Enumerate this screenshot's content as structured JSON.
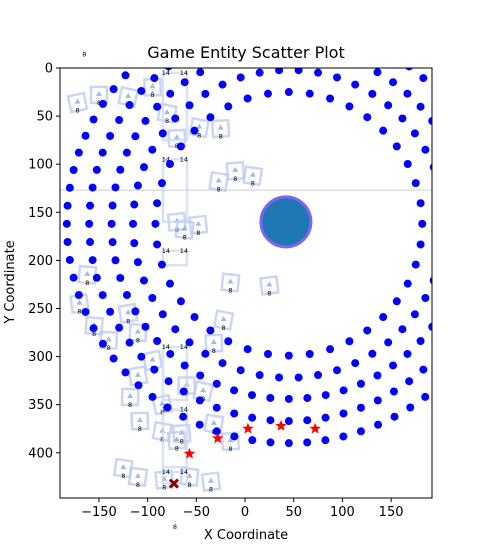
{
  "chart_data": {
    "type": "scatter",
    "title": "Game Entity Scatter Plot",
    "xlabel": "X Coordinate",
    "ylabel": "Y Coordinate",
    "xlim": [
      -190,
      192
    ],
    "ylim": [
      447,
      0
    ],
    "y_inverted": true,
    "grid": false,
    "x_ticks": [
      -150,
      -100,
      -50,
      0,
      50,
      100,
      150
    ],
    "y_ticks": [
      0,
      50,
      100,
      150,
      200,
      250,
      300,
      350,
      400
    ],
    "blue_point_color": "#0000ff",
    "star_color": "#ff0000",
    "hero_color": "#1f77b4",
    "hero_ring_color": "#7b68ee",
    "ring_center": [
      45,
      162
    ],
    "rings": [
      {
        "radius": 137,
        "points": 40
      },
      {
        "radius": 160,
        "points": 50
      },
      {
        "radius": 182,
        "points": 60
      },
      {
        "radius": 205,
        "points": 68
      },
      {
        "radius": 228,
        "points": 76
      }
    ],
    "hero": {
      "x": 42,
      "y": 160
    },
    "stars": [
      {
        "x": -57,
        "y": 401
      },
      {
        "x": -28,
        "y": 385
      },
      {
        "x": 3,
        "y": 375
      },
      {
        "x": 37,
        "y": 372
      },
      {
        "x": 72,
        "y": 375
      }
    ],
    "cross": {
      "x": -73,
      "y": 432
    },
    "horizontal_line_y": 127,
    "square_markers": [
      {
        "x": -172,
        "y": 36,
        "label": "8"
      },
      {
        "x": -150,
        "y": 28,
        "label": "8"
      },
      {
        "x": -120,
        "y": 30,
        "label": "8"
      },
      {
        "x": -95,
        "y": 20,
        "label": "8"
      },
      {
        "x": -80,
        "y": 47,
        "label": "8"
      },
      {
        "x": -70,
        "y": 73,
        "label": "8"
      },
      {
        "x": -47,
        "y": 62,
        "label": "8"
      },
      {
        "x": -25,
        "y": 63,
        "label": "8"
      },
      {
        "x": -27,
        "y": 118,
        "label": "8"
      },
      {
        "x": -10,
        "y": 107,
        "label": "8"
      },
      {
        "x": 8,
        "y": 112,
        "label": "8"
      },
      {
        "x": -70,
        "y": 160,
        "label": "8"
      },
      {
        "x": -62,
        "y": 168,
        "label": "8"
      },
      {
        "x": -48,
        "y": 163,
        "label": "8"
      },
      {
        "x": -15,
        "y": 223,
        "label": "8"
      },
      {
        "x": 25,
        "y": 226,
        "label": "8"
      },
      {
        "x": -162,
        "y": 215,
        "label": "8"
      },
      {
        "x": -170,
        "y": 245,
        "label": "8"
      },
      {
        "x": -155,
        "y": 268,
        "label": "8"
      },
      {
        "x": -120,
        "y": 255,
        "label": "8"
      },
      {
        "x": -110,
        "y": 275,
        "label": "8"
      },
      {
        "x": -110,
        "y": 320,
        "label": "8"
      },
      {
        "x": -140,
        "y": 283,
        "label": "8"
      },
      {
        "x": -95,
        "y": 304,
        "label": "8"
      },
      {
        "x": -118,
        "y": 342,
        "label": "8"
      },
      {
        "x": -85,
        "y": 350,
        "label": "8"
      },
      {
        "x": -60,
        "y": 330,
        "label": "8"
      },
      {
        "x": -43,
        "y": 336,
        "label": "8"
      },
      {
        "x": -32,
        "y": 286,
        "label": "8"
      },
      {
        "x": -22,
        "y": 262,
        "label": "8"
      },
      {
        "x": -108,
        "y": 367,
        "label": "8"
      },
      {
        "x": -85,
        "y": 378,
        "label": "8"
      },
      {
        "x": -65,
        "y": 380,
        "label": "8"
      },
      {
        "x": -32,
        "y": 370,
        "label": "8"
      },
      {
        "x": -15,
        "y": 388,
        "label": "8"
      },
      {
        "x": -125,
        "y": 416,
        "label": "8"
      },
      {
        "x": -70,
        "y": 387,
        "label": "8"
      },
      {
        "x": -110,
        "y": 425,
        "label": "8"
      },
      {
        "x": -83,
        "y": 428,
        "label": "8"
      },
      {
        "x": -57,
        "y": 425,
        "label": "8"
      },
      {
        "x": -35,
        "y": 430,
        "label": "8"
      }
    ],
    "tall_boxes": [
      {
        "x": -72,
        "y_top": 5,
        "y_bottom": 75,
        "label": "14"
      },
      {
        "x": -72,
        "y_top": 95,
        "y_bottom": 160,
        "label": "14"
      },
      {
        "x": -72,
        "y_top": 190,
        "y_bottom": 205,
        "label": "14"
      },
      {
        "x": -72,
        "y_top": 290,
        "y_bottom": 345,
        "label": "14"
      },
      {
        "x": -72,
        "y_top": 355,
        "y_bottom": 415,
        "label": "14"
      },
      {
        "x": -72,
        "y_top": 420,
        "y_bottom": 432,
        "label": "14"
      }
    ],
    "outside_labels": [
      {
        "x": -165,
        "y": -12,
        "text": "8"
      },
      {
        "x": -72,
        "y": 479,
        "text": "8"
      }
    ]
  }
}
